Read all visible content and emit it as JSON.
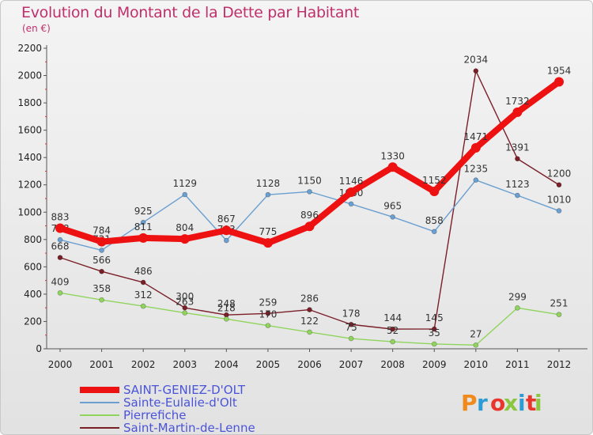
{
  "brand": {
    "text": "Proxiti",
    "colors": [
      "#f08a1c",
      "#2d9bd6",
      "#e8362d",
      "#8bc63f",
      "#2d9bd6",
      "#e8362d",
      "#8bc63f"
    ]
  },
  "chart_data": {
    "type": "line",
    "title": "Evolution du Montant de la Dette par Habitant",
    "unit": "(en €)",
    "xlabel": "",
    "ylabel": "",
    "ylim": [
      0,
      2200
    ],
    "yticks": [
      0,
      200,
      400,
      600,
      800,
      1000,
      1200,
      1400,
      1600,
      1800,
      2000,
      2200
    ],
    "x": [
      "2000",
      "2001",
      "2002",
      "2003",
      "2004",
      "2005",
      "2006",
      "2007",
      "2008",
      "2009",
      "2010",
      "2011",
      "2012"
    ],
    "grid": false,
    "legend_position": "bottom-left",
    "series": [
      {
        "name": "Saint-Martin-de-Lenne",
        "color": "#7a1f28",
        "values": [
          668,
          566,
          486,
          300,
          248,
          259,
          286,
          178,
          144,
          145,
          2034,
          1391,
          1200
        ],
        "labels": [
          "668",
          "566",
          "486",
          "300",
          "248",
          "259",
          "286",
          "178",
          "144",
          "145",
          "2034",
          "1391",
          "1200"
        ]
      },
      {
        "name": "Pierrefiche",
        "color": "#8fd45c",
        "values": [
          409,
          358,
          312,
          263,
          218,
          170,
          122,
          75,
          52,
          35,
          27,
          299,
          251
        ],
        "labels": [
          "409",
          "358",
          "312",
          "263",
          "218",
          "170",
          "122",
          "75",
          "52",
          "35",
          "27",
          "299",
          "251"
        ]
      },
      {
        "name": "Sainte-Eulalie-d'Olt",
        "color": "#6a9fd0",
        "values": [
          798,
          721,
          925,
          1129,
          793,
          1128,
          1150,
          1060,
          965,
          858,
          1235,
          1123,
          1010
        ],
        "labels": [
          "798",
          "721",
          "925",
          "1129",
          "793",
          "1128",
          "1150",
          "1060",
          "965",
          "858",
          "1235",
          "1123",
          "1010"
        ]
      },
      {
        "name": "SAINT-GENIEZ-D'OLT",
        "color": "#ee1111",
        "values": [
          883,
          784,
          811,
          804,
          867,
          775,
          896,
          1146,
          1330,
          1152,
          1471,
          1732,
          1954
        ],
        "labels": [
          "883",
          "784",
          "811",
          "804",
          "867",
          "775",
          "896",
          "1146",
          "1330",
          "1152",
          "1471",
          "1732",
          "1954"
        ]
      }
    ],
    "legend_order": [
      "SAINT-GENIEZ-D'OLT",
      "Sainte-Eulalie-d'Olt",
      "Pierrefiche",
      "Saint-Martin-de-Lenne"
    ]
  }
}
